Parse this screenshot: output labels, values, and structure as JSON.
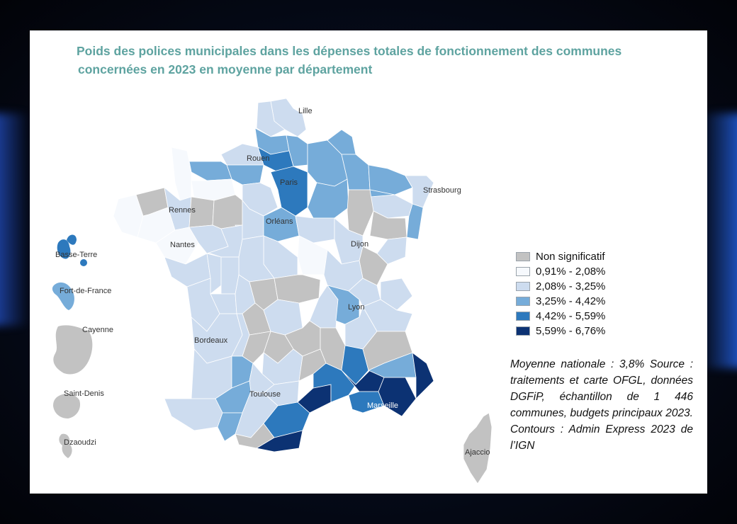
{
  "title_line1": "Poids des polices municipales dans les dépenses totales de fonctionnement des communes",
  "title_line2": "concernées en 2023 en moyenne par département",
  "colors": {
    "title": "#5ea3a0",
    "non_significatif": "#c2c2c2",
    "c1": "#f6f9fd",
    "c2": "#cddcef",
    "c3": "#76acd9",
    "c4": "#2d79bd",
    "c5": "#0c3273"
  },
  "legend": [
    {
      "label": "Non significatif",
      "color": "#c2c2c2"
    },
    {
      "label": "0,91% - 2,08%",
      "color": "#f6f9fd"
    },
    {
      "label": "2,08% - 3,25%",
      "color": "#cddcef"
    },
    {
      "label": "3,25% - 4,42%",
      "color": "#76acd9"
    },
    {
      "label": "4,42% - 5,59%",
      "color": "#2d79bd"
    },
    {
      "label": "5,59% - 6,76%",
      "color": "#0c3273"
    }
  ],
  "note": "Moyenne nationale : 3,8% Source : traitements et carte OFGL, données DGFiP, échantil­lon de 1 446 communes, budgets principaux 2023. Contours : Ad­min Express 2023 de l’IGN",
  "cities": {
    "lille": "Lille",
    "rouen": "Rouen",
    "paris": "Paris",
    "strasbourg": "Strasbourg",
    "rennes": "Rennes",
    "orleans": "Orléans",
    "nantes": "Nantes",
    "dijon": "Dijon",
    "lyon": "Lyon",
    "bordeaux": "Bordeaux",
    "toulouse": "Toulouse",
    "marseille": "Marseille",
    "ajaccio": "Ajaccio",
    "basse_terre": "Basse-Terre",
    "fort_de_france": "Fort-de-France",
    "cayenne": "Cayenne",
    "saint_denis": "Saint-Denis",
    "dzaoudzi": "Dzaoudzi"
  }
}
